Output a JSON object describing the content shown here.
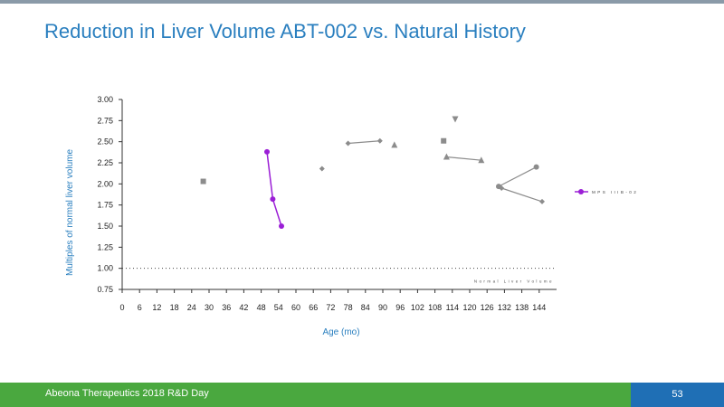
{
  "slide": {
    "title": "Reduction in Liver Volume ABT-002 vs. Natural History",
    "footer_text": "Abeona Therapeutics 2018 R&D Day",
    "page_number": "53"
  },
  "colors": {
    "title": "#2a7fbf",
    "axis_label": "#2a7fbf",
    "footer_green": "#4aa83f",
    "page_box_blue": "#1f6fb5",
    "highlight_series": "#9b1fd6",
    "natural_history": "#8c8c8c"
  },
  "chart_data": {
    "type": "scatter",
    "xlabel": "Age (mo)",
    "ylabel": "Multiples of normal liver volume",
    "xlim": [
      0,
      150
    ],
    "ylim": [
      0.75,
      3.0
    ],
    "xticks": [
      0,
      6,
      12,
      18,
      24,
      30,
      36,
      42,
      48,
      54,
      60,
      66,
      72,
      78,
      84,
      90,
      96,
      102,
      108,
      114,
      120,
      126,
      132,
      138,
      144
    ],
    "yticks": [
      0.75,
      1.0,
      1.25,
      1.5,
      1.75,
      2.0,
      2.25,
      2.5,
      2.75,
      3.0
    ],
    "ytick_labels": [
      "0.75",
      "1.00",
      "1.25",
      "1.50",
      "1.75",
      "2.00",
      "2.25",
      "2.50",
      "2.75",
      "3.00"
    ],
    "grid": false,
    "legend_position": "right",
    "reference_line": {
      "y": 1.0,
      "label": "Normal Liver Volume"
    },
    "highlight_series": {
      "name": "MPS IIIB-02",
      "color": "#9b1fd6",
      "x": [
        50,
        52,
        55
      ],
      "y": [
        2.38,
        1.82,
        1.5
      ]
    },
    "natural_history": [
      {
        "marker": "square",
        "x": [
          28
        ],
        "y": [
          2.03
        ]
      },
      {
        "marker": "diamond",
        "x": [
          69
        ],
        "y": [
          2.18
        ]
      },
      {
        "marker": "diamond",
        "x": [
          78,
          89
        ],
        "y": [
          2.48,
          2.51
        ]
      },
      {
        "marker": "triangle",
        "x": [
          94
        ],
        "y": [
          2.46
        ]
      },
      {
        "marker": "square",
        "x": [
          111
        ],
        "y": [
          2.51
        ]
      },
      {
        "marker": "triangle-down",
        "x": [
          115
        ],
        "y": [
          2.77
        ]
      },
      {
        "marker": "triangle",
        "x": [
          112,
          124
        ],
        "y": [
          2.32,
          2.28
        ]
      },
      {
        "marker": "circle",
        "x": [
          130,
          143
        ],
        "y": [
          1.97,
          2.2
        ]
      },
      {
        "marker": "diamond",
        "x": [
          131,
          145
        ],
        "y": [
          1.95,
          1.79
        ]
      }
    ]
  }
}
